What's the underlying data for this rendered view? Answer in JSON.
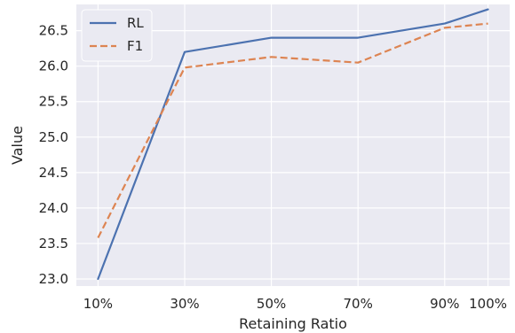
{
  "chart_data": {
    "type": "line",
    "xlabel": "Retaining Ratio",
    "ylabel": "Value",
    "categories": [
      "10%",
      "30%",
      "50%",
      "70%",
      "90%",
      "100%"
    ],
    "x": [
      10,
      30,
      50,
      70,
      90,
      100
    ],
    "xlim": [
      5,
      105
    ],
    "ylim": [
      22.9,
      26.87
    ],
    "yticks": [
      23.0,
      23.5,
      24.0,
      24.5,
      25.0,
      25.5,
      26.0,
      26.5
    ],
    "ytick_labels": [
      "23.0",
      "23.5",
      "24.0",
      "24.5",
      "25.0",
      "25.5",
      "26.0",
      "26.5"
    ],
    "grid": true,
    "legend_position": "top-left",
    "series": [
      {
        "name": "RL",
        "values": [
          23.0,
          26.2,
          26.4,
          26.4,
          26.6,
          26.8
        ],
        "color": "#4c72b0",
        "style": "solid"
      },
      {
        "name": "F1",
        "values": [
          23.58,
          25.98,
          26.13,
          26.05,
          26.54,
          26.6
        ],
        "color": "#dd8452",
        "style": "dashed"
      }
    ]
  }
}
